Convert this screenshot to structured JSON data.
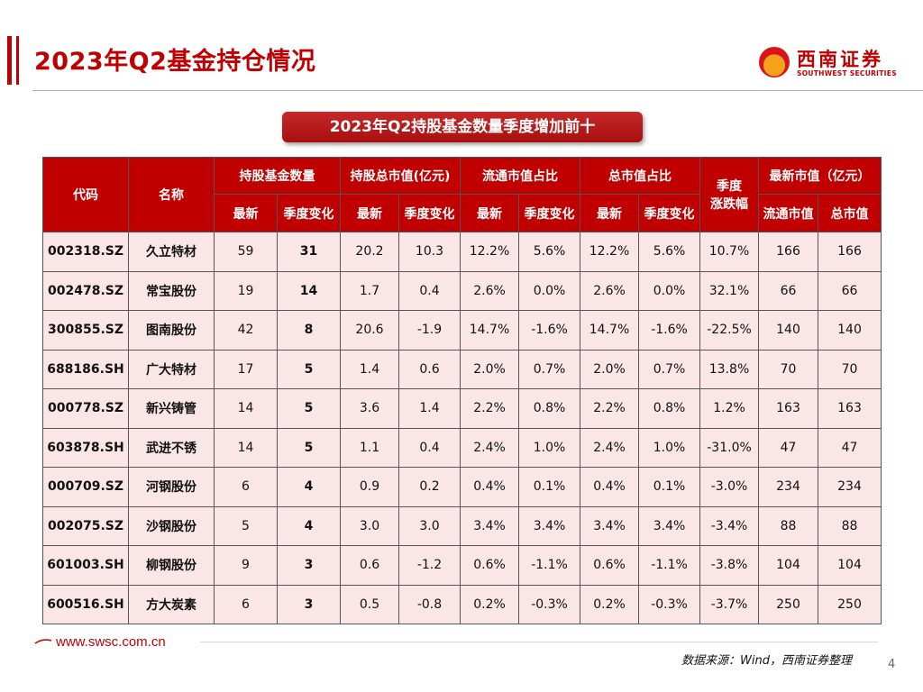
{
  "header": {
    "title": "2023年Q2基金持仓情况",
    "logo_cn": "西南证券",
    "logo_en": "SOUTHWEST SECURITIES"
  },
  "subtitle": "2023年Q2持股基金数量季度增加前十",
  "table": {
    "headers": {
      "code": "代码",
      "name": "名称",
      "fund_count": "持股基金数量",
      "total_value": "持股总市值(亿元)",
      "float_ratio": "流通市值占比",
      "total_ratio": "总市值占比",
      "quarter_change": "季度\n涨跌幅",
      "latest_mv": "最新市值（亿元）",
      "latest": "最新",
      "qoq": "季度变化",
      "float_mv": "流通市值",
      "total_mv": "总市值"
    },
    "rows": [
      {
        "code": "002318.SZ",
        "name": "久立特材",
        "fund_latest": "59",
        "fund_qoq": "31",
        "value_latest": "20.2",
        "value_qoq": "10.3",
        "float_latest": "12.2%",
        "float_qoq": "5.6%",
        "total_latest": "12.2%",
        "total_qoq": "5.6%",
        "quarter_change": "10.7%",
        "float_mv": "166",
        "total_mv": "166"
      },
      {
        "code": "002478.SZ",
        "name": "常宝股份",
        "fund_latest": "19",
        "fund_qoq": "14",
        "value_latest": "1.7",
        "value_qoq": "0.4",
        "float_latest": "2.6%",
        "float_qoq": "0.0%",
        "total_latest": "2.6%",
        "total_qoq": "0.0%",
        "quarter_change": "32.1%",
        "float_mv": "66",
        "total_mv": "66"
      },
      {
        "code": "300855.SZ",
        "name": "图南股份",
        "fund_latest": "42",
        "fund_qoq": "8",
        "value_latest": "20.6",
        "value_qoq": "-1.9",
        "float_latest": "14.7%",
        "float_qoq": "-1.6%",
        "total_latest": "14.7%",
        "total_qoq": "-1.6%",
        "quarter_change": "-22.5%",
        "float_mv": "140",
        "total_mv": "140"
      },
      {
        "code": "688186.SH",
        "name": "广大特材",
        "fund_latest": "17",
        "fund_qoq": "5",
        "value_latest": "1.4",
        "value_qoq": "0.6",
        "float_latest": "2.0%",
        "float_qoq": "0.7%",
        "total_latest": "2.0%",
        "total_qoq": "0.7%",
        "quarter_change": "13.8%",
        "float_mv": "70",
        "total_mv": "70"
      },
      {
        "code": "000778.SZ",
        "name": "新兴铸管",
        "fund_latest": "14",
        "fund_qoq": "5",
        "value_latest": "3.6",
        "value_qoq": "1.4",
        "float_latest": "2.2%",
        "float_qoq": "0.8%",
        "total_latest": "2.2%",
        "total_qoq": "0.8%",
        "quarter_change": "1.2%",
        "float_mv": "163",
        "total_mv": "163"
      },
      {
        "code": "603878.SH",
        "name": "武进不锈",
        "fund_latest": "14",
        "fund_qoq": "5",
        "value_latest": "1.1",
        "value_qoq": "0.4",
        "float_latest": "2.4%",
        "float_qoq": "1.0%",
        "total_latest": "2.4%",
        "total_qoq": "1.0%",
        "quarter_change": "-31.0%",
        "float_mv": "47",
        "total_mv": "47"
      },
      {
        "code": "000709.SZ",
        "name": "河钢股份",
        "fund_latest": "6",
        "fund_qoq": "4",
        "value_latest": "0.9",
        "value_qoq": "0.2",
        "float_latest": "0.4%",
        "float_qoq": "0.1%",
        "total_latest": "0.4%",
        "total_qoq": "0.1%",
        "quarter_change": "-3.0%",
        "float_mv": "234",
        "total_mv": "234"
      },
      {
        "code": "002075.SZ",
        "name": "沙钢股份",
        "fund_latest": "5",
        "fund_qoq": "4",
        "value_latest": "3.0",
        "value_qoq": "3.0",
        "float_latest": "3.4%",
        "float_qoq": "3.4%",
        "total_latest": "3.4%",
        "total_qoq": "3.4%",
        "quarter_change": "-3.4%",
        "float_mv": "88",
        "total_mv": "88"
      },
      {
        "code": "601003.SH",
        "name": "柳钢股份",
        "fund_latest": "9",
        "fund_qoq": "3",
        "value_latest": "0.6",
        "value_qoq": "-1.2",
        "float_latest": "0.6%",
        "float_qoq": "-1.1%",
        "total_latest": "0.6%",
        "total_qoq": "-1.1%",
        "quarter_change": "-3.8%",
        "float_mv": "104",
        "total_mv": "104"
      },
      {
        "code": "600516.SH",
        "name": "方大炭素",
        "fund_latest": "6",
        "fund_qoq": "3",
        "value_latest": "0.5",
        "value_qoq": "-0.8",
        "float_latest": "0.2%",
        "float_qoq": "-0.3%",
        "total_latest": "0.2%",
        "total_qoq": "-0.3%",
        "quarter_change": "-3.7%",
        "float_mv": "250",
        "total_mv": "250"
      }
    ]
  },
  "footer": {
    "url": "www.swsc.com.cn",
    "source": "数据来源：Wind，西南证券整理",
    "page": "4"
  },
  "colors": {
    "accent": "#c00000",
    "row_bg": "#fbe6e7",
    "logo_orange": "#f4a21c"
  }
}
